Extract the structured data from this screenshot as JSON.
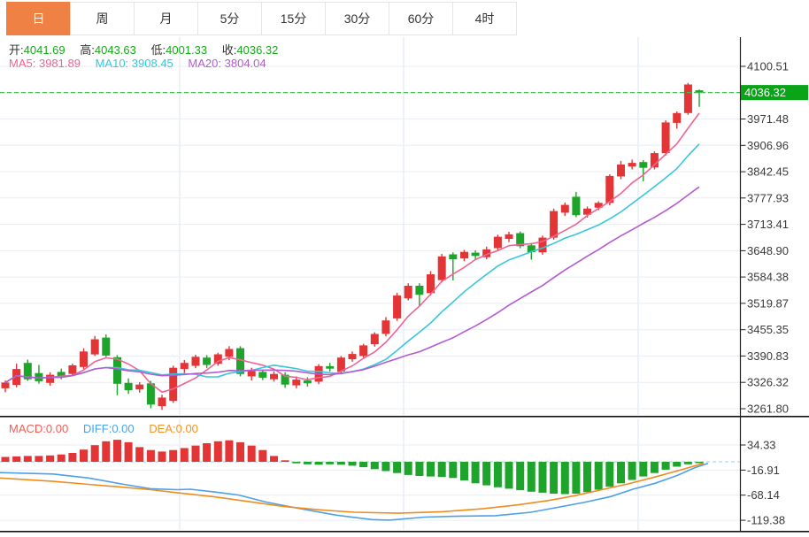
{
  "tabs": [
    {
      "label": "日",
      "name": "day",
      "active": true
    },
    {
      "label": "周",
      "name": "week",
      "active": false
    },
    {
      "label": "月",
      "name": "month",
      "active": false
    },
    {
      "label": "5分",
      "name": "5min",
      "active": false
    },
    {
      "label": "15分",
      "name": "15min",
      "active": false
    },
    {
      "label": "30分",
      "name": "30min",
      "active": false
    },
    {
      "label": "60分",
      "name": "60min",
      "active": false
    },
    {
      "label": "4时",
      "name": "4hour",
      "active": false
    }
  ],
  "header": {
    "ohlc": {
      "open_label": "开:",
      "open": "4041.69",
      "high_label": "高:",
      "high": "4043.63",
      "low_label": "低:",
      "low": "4001.33",
      "close_label": "收:",
      "close": "4036.32"
    },
    "ma": {
      "ma5_label": "MA5:",
      "ma5": "3981.89",
      "ma10_label": "MA10:",
      "ma10": "3908.45",
      "ma20_label": "MA20:",
      "ma20": "3804.04"
    }
  },
  "macd_header": {
    "macd_label": "MACD:",
    "macd": "0.00",
    "diff_label": "DIFF:",
    "diff": "0.00",
    "dea_label": "DEA:",
    "dea": "0.00"
  },
  "axis": {
    "price_labels": [
      "4100.51",
      "3971.48",
      "3906.96",
      "3842.45",
      "3777.93",
      "3713.41",
      "3648.90",
      "3584.38",
      "3519.87",
      "3455.35",
      "3390.83",
      "3326.32",
      "3261.80"
    ],
    "current_price_label": "4036.32",
    "macd_labels": [
      "34.33",
      "-16.91",
      "-68.14",
      "-119.38"
    ]
  },
  "colors": {
    "up": "#e33535",
    "down": "#1ea32b",
    "ma5": "#ef6492",
    "ma10": "#36c6dc",
    "ma20": "#b35bd0",
    "diff": "#4da0e8",
    "dea": "#f08c1e",
    "tab_active_bg": "#ef8144",
    "price_label_bg": "#0aa418",
    "current_price_line": "#46b854",
    "macd_zero_line": "#aed6f2",
    "grid_h": "#e9eef4",
    "grid_v": "#d9e4f0",
    "axis_line": "#222",
    "axis_text": "#3a3a3a"
  },
  "chart_data": {
    "type": "candlestick",
    "title": "Daily price chart with MA5/MA10/MA20 and MACD sub-chart",
    "period_selected": "日",
    "last_candle": {
      "open": 4041.69,
      "high": 4043.63,
      "low": 4001.33,
      "close": 4036.32
    },
    "ma_values": {
      "MA5": 3981.89,
      "MA10": 3908.45,
      "MA20": 3804.04
    },
    "macd_values": {
      "MACD": 0.0,
      "DIFF": 0.0,
      "DEA": 0.0
    },
    "price_axis_ticks": [
      4100.51,
      3971.48,
      3906.96,
      3842.45,
      3777.93,
      3713.41,
      3648.9,
      3584.38,
      3519.87,
      3455.35,
      3390.83,
      3326.32,
      3261.8
    ],
    "price_gridlines": [
      4100.51,
      4036.32,
      3971.48,
      3906.96,
      3842.45,
      3777.93,
      3713.41,
      3648.9,
      3584.38,
      3519.87,
      3455.35,
      3390.83,
      3326.32,
      3261.8
    ],
    "current_price": 4036.32,
    "candles": [
      [
        3312,
        3331,
        3302,
        3326
      ],
      [
        3320,
        3372,
        3314,
        3359
      ],
      [
        3374,
        3382,
        3330,
        3334
      ],
      [
        3349,
        3369,
        3323,
        3329
      ],
      [
        3325,
        3351,
        3318,
        3345
      ],
      [
        3352,
        3360,
        3334,
        3339
      ],
      [
        3347,
        3372,
        3342,
        3368
      ],
      [
        3364,
        3410,
        3359,
        3402
      ],
      [
        3395,
        3440,
        3391,
        3432
      ],
      [
        3436,
        3444,
        3389,
        3392
      ],
      [
        3388,
        3393,
        3295,
        3323
      ],
      [
        3325,
        3336,
        3298,
        3307
      ],
      [
        3309,
        3327,
        3301,
        3321
      ],
      [
        3324,
        3330,
        3263,
        3272
      ],
      [
        3268,
        3296,
        3259,
        3289
      ],
      [
        3281,
        3367,
        3276,
        3362
      ],
      [
        3359,
        3381,
        3349,
        3374
      ],
      [
        3367,
        3394,
        3361,
        3389
      ],
      [
        3387,
        3393,
        3361,
        3369
      ],
      [
        3372,
        3399,
        3367,
        3395
      ],
      [
        3389,
        3415,
        3381,
        3408
      ],
      [
        3410,
        3415,
        3341,
        3347
      ],
      [
        3341,
        3362,
        3331,
        3354
      ],
      [
        3352,
        3358,
        3332,
        3338
      ],
      [
        3334,
        3353,
        3328,
        3347
      ],
      [
        3345,
        3351,
        3313,
        3321
      ],
      [
        3319,
        3341,
        3312,
        3333
      ],
      [
        3331,
        3339,
        3316,
        3324
      ],
      [
        3328,
        3371,
        3322,
        3366
      ],
      [
        3366,
        3374,
        3353,
        3360
      ],
      [
        3353,
        3391,
        3347,
        3387
      ],
      [
        3383,
        3402,
        3377,
        3396
      ],
      [
        3391,
        3421,
        3387,
        3417
      ],
      [
        3420,
        3449,
        3414,
        3445
      ],
      [
        3445,
        3486,
        3439,
        3478
      ],
      [
        3483,
        3546,
        3477,
        3539
      ],
      [
        3532,
        3569,
        3527,
        3563
      ],
      [
        3563,
        3569,
        3512,
        3541
      ],
      [
        3545,
        3599,
        3539,
        3591
      ],
      [
        3577,
        3641,
        3571,
        3635
      ],
      [
        3640,
        3645,
        3576,
        3628
      ],
      [
        3630,
        3651,
        3623,
        3646
      ],
      [
        3644,
        3650,
        3628,
        3636
      ],
      [
        3633,
        3659,
        3628,
        3652
      ],
      [
        3655,
        3688,
        3649,
        3683
      ],
      [
        3678,
        3695,
        3670,
        3689
      ],
      [
        3692,
        3696,
        3655,
        3660
      ],
      [
        3662,
        3668,
        3627,
        3645
      ],
      [
        3645,
        3686,
        3639,
        3681
      ],
      [
        3681,
        3752,
        3676,
        3746
      ],
      [
        3742,
        3767,
        3734,
        3761
      ],
      [
        3781,
        3793,
        3731,
        3736
      ],
      [
        3737,
        3757,
        3730,
        3752
      ],
      [
        3754,
        3770,
        3748,
        3766
      ],
      [
        3766,
        3836,
        3760,
        3832
      ],
      [
        3831,
        3869,
        3824,
        3860
      ],
      [
        3855,
        3872,
        3848,
        3864
      ],
      [
        3866,
        3871,
        3819,
        3852
      ],
      [
        3853,
        3892,
        3848,
        3888
      ],
      [
        3888,
        3968,
        3882,
        3963
      ],
      [
        3962,
        3990,
        3948,
        3986
      ],
      [
        3986,
        4060,
        3982,
        4056
      ],
      [
        4041.69,
        4043.63,
        4001.33,
        4036.32
      ]
    ],
    "ma_periods": [
      5,
      10,
      20
    ],
    "macd": {
      "axis_ticks": [
        34.33,
        -16.91,
        -68.14,
        -119.38
      ],
      "histogram": [
        10,
        11,
        12,
        12,
        13,
        15,
        18,
        25,
        34,
        42,
        45,
        40,
        30,
        24,
        21,
        24,
        28,
        33,
        38,
        42,
        44,
        40,
        33,
        24,
        12,
        3,
        -3,
        -5,
        -6,
        -5,
        -6,
        -8,
        -11,
        -15,
        -19,
        -23,
        -27,
        -29,
        -30,
        -31,
        -33,
        -38,
        -44,
        -48,
        -52,
        -55,
        -58,
        -61,
        -63,
        -65,
        -66,
        -65,
        -62,
        -57,
        -51,
        -44,
        -37,
        -30,
        -23,
        -16,
        -10,
        -5,
        -1
      ],
      "diff_points": [
        [
          0,
          -22
        ],
        [
          60,
          -25
        ],
        [
          100,
          -33
        ],
        [
          140,
          -46
        ],
        [
          170,
          -55
        ],
        [
          200,
          -57
        ],
        [
          215,
          -56
        ],
        [
          240,
          -61
        ],
        [
          270,
          -68
        ],
        [
          300,
          -82
        ],
        [
          340,
          -96
        ],
        [
          380,
          -109
        ],
        [
          420,
          -118
        ],
        [
          440,
          -119
        ],
        [
          480,
          -113
        ],
        [
          520,
          -111
        ],
        [
          560,
          -110
        ],
        [
          600,
          -103
        ],
        [
          630,
          -93
        ],
        [
          660,
          -83
        ],
        [
          690,
          -71
        ],
        [
          715,
          -56
        ],
        [
          740,
          -44
        ],
        [
          765,
          -28
        ],
        [
          785,
          -12
        ],
        [
          800,
          -3
        ]
      ],
      "dea_points": [
        [
          0,
          -33
        ],
        [
          60,
          -40
        ],
        [
          100,
          -46
        ],
        [
          140,
          -52
        ],
        [
          170,
          -57
        ],
        [
          200,
          -63
        ],
        [
          240,
          -71
        ],
        [
          280,
          -81
        ],
        [
          320,
          -91
        ],
        [
          360,
          -98
        ],
        [
          400,
          -103
        ],
        [
          450,
          -105
        ],
        [
          500,
          -102
        ],
        [
          545,
          -96
        ],
        [
          585,
          -88
        ],
        [
          620,
          -79
        ],
        [
          650,
          -69
        ],
        [
          680,
          -57
        ],
        [
          710,
          -45
        ],
        [
          740,
          -31
        ],
        [
          770,
          -16
        ],
        [
          795,
          -3
        ]
      ]
    },
    "vertical_gridlines_x": [
      203,
      456,
      721
    ]
  }
}
